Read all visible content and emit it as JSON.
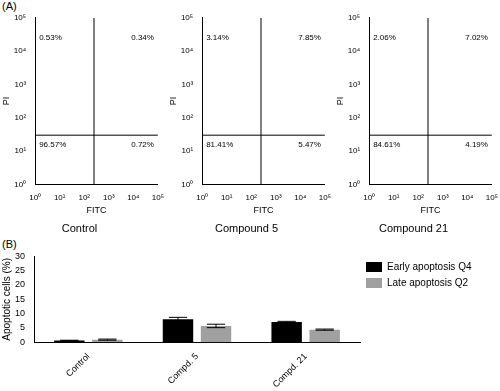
{
  "chart_data": [
    {
      "type": "scatter",
      "panel": "(A)",
      "title": "Control",
      "x_label": "FITC",
      "y_label": "PI",
      "log": true,
      "grid": false,
      "xlim": [
        1,
        100000
      ],
      "ylim": [
        1,
        100000
      ],
      "xticks": [
        {
          "value": 1,
          "label": "10⁰"
        },
        {
          "value": 10,
          "label": "10¹"
        },
        {
          "value": 100,
          "label": "10²"
        },
        {
          "value": 1000,
          "label": "10³"
        },
        {
          "value": 10000,
          "label": "10⁴"
        },
        {
          "value": 100000,
          "label": "10⁵"
        }
      ],
      "yticks": [
        {
          "value": 1,
          "label": "10⁰"
        },
        {
          "value": 10,
          "label": "10¹"
        },
        {
          "value": 100,
          "label": "10²"
        },
        {
          "value": 1000,
          "label": "10³"
        },
        {
          "value": 10000,
          "label": "10⁴"
        },
        {
          "value": 100000,
          "label": "10⁵"
        }
      ],
      "gate": [
        250,
        30
      ],
      "quadrant_values": [
        0.53,
        0.34,
        96.57,
        0.72
      ],
      "quadrant_labels": [
        "0.53%",
        "0.34%",
        "96.57%",
        "0.72%"
      ]
    },
    {
      "type": "scatter",
      "title": "Compound 5",
      "x_label": "FITC",
      "y_label": "PI",
      "log": true,
      "grid": false,
      "xlim": [
        1,
        100000
      ],
      "ylim": [
        1,
        100000
      ],
      "xticks": [
        {
          "value": 1,
          "label": "10⁰"
        },
        {
          "value": 10,
          "label": "10¹"
        },
        {
          "value": 100,
          "label": "10²"
        },
        {
          "value": 1000,
          "label": "10³"
        },
        {
          "value": 10000,
          "label": "10⁴"
        },
        {
          "value": 100000,
          "label": "10⁵"
        }
      ],
      "yticks": [
        {
          "value": 1,
          "label": "10⁰"
        },
        {
          "value": 10,
          "label": "10¹"
        },
        {
          "value": 100,
          "label": "10²"
        },
        {
          "value": 1000,
          "label": "10³"
        },
        {
          "value": 10000,
          "label": "10⁴"
        },
        {
          "value": 100000,
          "label": "10⁵"
        }
      ],
      "gate": [
        250,
        30
      ],
      "quadrant_values": [
        3.14,
        7.85,
        81.41,
        5.47
      ],
      "quadrant_labels": [
        "3.14%",
        "7.85%",
        "81.41%",
        "5.47%"
      ]
    },
    {
      "type": "scatter",
      "title": "Compound 21",
      "x_label": "FITC",
      "y_label": "PI",
      "log": true,
      "grid": false,
      "xlim": [
        1,
        100000
      ],
      "ylim": [
        1,
        100000
      ],
      "xticks": [
        {
          "value": 1,
          "label": "10⁰"
        },
        {
          "value": 10,
          "label": "10¹"
        },
        {
          "value": 100,
          "label": "10²"
        },
        {
          "value": 1000,
          "label": "10³"
        },
        {
          "value": 10000,
          "label": "10⁴"
        },
        {
          "value": 100000,
          "label": "10⁵"
        }
      ],
      "yticks": [
        {
          "value": 1,
          "label": "10⁰"
        },
        {
          "value": 10,
          "label": "10¹"
        },
        {
          "value": 100,
          "label": "10²"
        },
        {
          "value": 1000,
          "label": "10³"
        },
        {
          "value": 10000,
          "label": "10⁴"
        },
        {
          "value": 100000,
          "label": "10⁵"
        }
      ],
      "gate": [
        250,
        30
      ],
      "quadrant_values": [
        2.06,
        7.02,
        84.61,
        4.19
      ],
      "quadrant_labels": [
        "2.06%",
        "7.02%",
        "84.61%",
        "4.19%"
      ]
    },
    {
      "type": "bar",
      "panel": "(B)",
      "y_label": "Apoptotic cells (%)",
      "grid": false,
      "legend": "upper right",
      "categories": [
        "Control",
        "Compd. 5",
        "Compd. 21"
      ],
      "ylim": [
        0,
        30
      ],
      "yticks": [
        0,
        5,
        10,
        15,
        20,
        25,
        30
      ],
      "series": [
        {
          "name": "Early apoptosis Q4",
          "color": "#000000",
          "values": [
            0.6,
            8.0,
            7.1
          ],
          "errors": [
            0.1,
            0.7,
            0.2
          ]
        },
        {
          "name": "Late apoptosis Q2",
          "color": "#a0a0a0",
          "values": [
            0.9,
            5.7,
            4.4
          ],
          "errors": [
            0.2,
            0.6,
            0.2
          ]
        }
      ]
    }
  ]
}
